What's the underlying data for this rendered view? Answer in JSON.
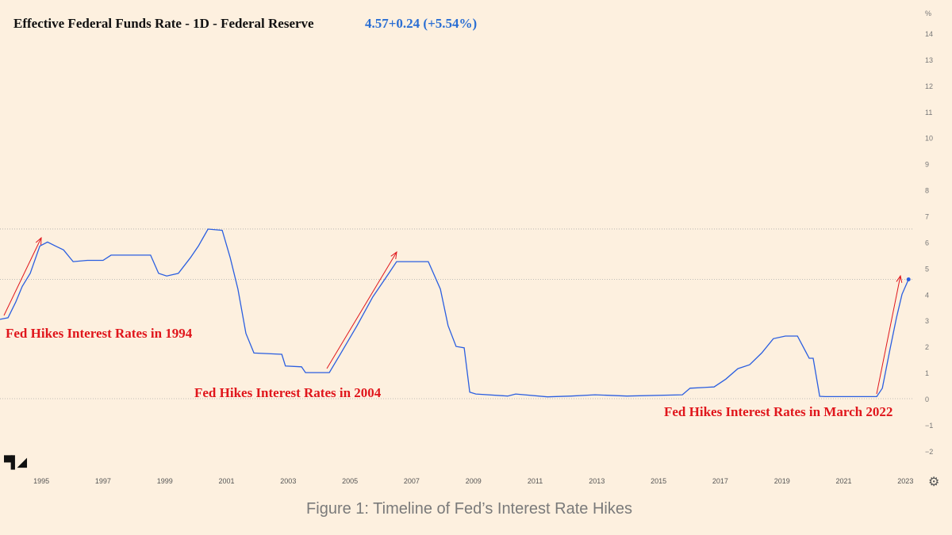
{
  "header": {
    "title": "Effective Federal Funds Rate - 1D - Federal Reserve",
    "quote": "4.57+0.24 (+5.54%)"
  },
  "annotations": [
    "Fed Hikes Interest Rates in 1994",
    "Fed Hikes Interest Rates in 2004",
    "Fed Hikes Interest Rates in March 2022"
  ],
  "caption": "Figure 1: Timeline of Fed’s Interest Rate Hikes",
  "icons": {
    "logo": "tradingview-logo",
    "settings": "gear-icon"
  },
  "logo_text": "TV",
  "chart_data": {
    "type": "line",
    "title": "Effective Federal Funds Rate - 1D - Federal Reserve",
    "ylabel": "%",
    "xlim": [
      1993.66,
      2023.5
    ],
    "ylim": [
      -2.5,
      15
    ],
    "x_ticks": [
      "1995",
      "1997",
      "1999",
      "2001",
      "2003",
      "2005",
      "2007",
      "2009",
      "2011",
      "2013",
      "2015",
      "2017",
      "2019",
      "2021",
      "2023"
    ],
    "y_ticks": [
      14,
      13,
      12,
      11,
      10,
      9,
      8,
      7,
      6,
      5,
      4,
      3,
      2,
      1,
      0,
      -1,
      -2
    ],
    "y_unit_label": "%",
    "grid": false,
    "reference_lines": [
      6.5,
      4.57,
      0
    ],
    "line_color": "#2a5ee0",
    "annotation_color": "#e0161c",
    "series": [
      {
        "x": [
          1993.66,
          1993.92,
          1994.17,
          1994.38,
          1994.64,
          1994.95,
          1995.2,
          1995.46,
          1995.72,
          1996.03,
          1996.49,
          1997.0,
          1997.26,
          1998.54,
          1998.8,
          1999.06,
          1999.44,
          1999.83,
          2000.09,
          2000.4,
          2000.86,
          2001.12,
          2001.37,
          2001.63,
          2001.89,
          2002.79,
          2002.91,
          2003.43,
          2003.56,
          2004.33,
          2004.71,
          2005.23,
          2005.74,
          2006.26,
          2006.51,
          2007.54,
          2007.93,
          2008.18,
          2008.44,
          2008.7,
          2008.88,
          2009.08,
          2010.11,
          2010.37,
          2011.4,
          2012.17,
          2012.94,
          2013.97,
          2015.77,
          2016.02,
          2016.8,
          2017.18,
          2017.57,
          2017.95,
          2018.34,
          2018.72,
          2019.11,
          2019.5,
          2019.88,
          2020.01,
          2020.22,
          2020.4,
          2022.07,
          2022.25,
          2022.5,
          2022.71,
          2022.89,
          2023.1
        ],
        "y": [
          3.04,
          3.1,
          3.7,
          4.3,
          4.8,
          5.85,
          6.0,
          5.85,
          5.7,
          5.25,
          5.3,
          5.3,
          5.5,
          5.5,
          4.8,
          4.7,
          4.8,
          5.4,
          5.85,
          6.5,
          6.45,
          5.4,
          4.2,
          2.5,
          1.75,
          1.7,
          1.25,
          1.22,
          1.0,
          1.0,
          1.75,
          2.8,
          3.9,
          4.8,
          5.25,
          5.25,
          4.2,
          2.8,
          2.0,
          1.95,
          0.25,
          0.18,
          0.1,
          0.18,
          0.07,
          0.1,
          0.15,
          0.1,
          0.15,
          0.4,
          0.45,
          0.75,
          1.15,
          1.3,
          1.75,
          2.3,
          2.4,
          2.4,
          1.55,
          1.55,
          0.09,
          0.08,
          0.08,
          0.4,
          1.9,
          3.1,
          4.0,
          4.57
        ]
      }
    ]
  }
}
